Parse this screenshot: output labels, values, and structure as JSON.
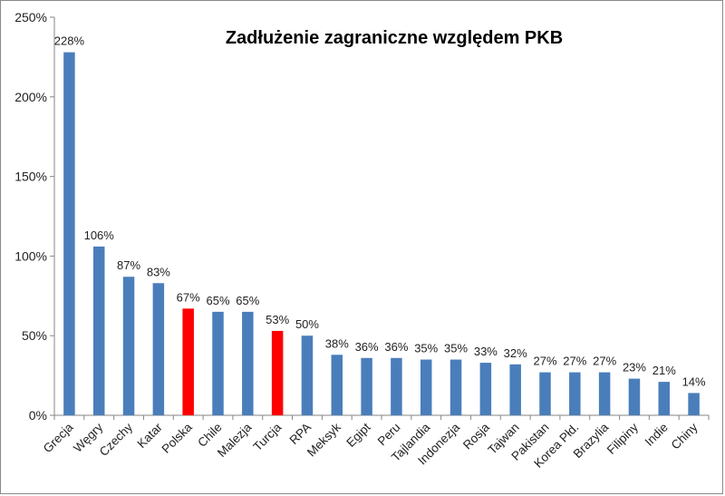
{
  "chart_data": {
    "type": "bar",
    "title": "Zadłużenie zagraniczne względem PKB",
    "ylim": [
      0,
      250
    ],
    "yticks": [
      "0%",
      "50%",
      "100%",
      "150%",
      "200%",
      "250%"
    ],
    "ytick_values": [
      0,
      50,
      100,
      150,
      200,
      250
    ],
    "grid": false,
    "legend": "none",
    "categories": [
      "Grecja",
      "Węgry",
      "Czechy",
      "Katar",
      "Polska",
      "Chile",
      "Malezja",
      "Turcja",
      "RPA",
      "Meksyk",
      "Egipt",
      "Peru",
      "Tajlandia",
      "Indonezja",
      "Rosja",
      "Tajwan",
      "Pakistan",
      "Korea Płd.",
      "Brazylia",
      "Filipiny",
      "Indie",
      "Chiny"
    ],
    "values": [
      228,
      106,
      87,
      83,
      67,
      65,
      65,
      53,
      50,
      38,
      36,
      36,
      35,
      35,
      33,
      32,
      27,
      27,
      27,
      23,
      21,
      14
    ],
    "data_labels": [
      "228%",
      "106%",
      "87%",
      "83%",
      "67%",
      "65%",
      "65%",
      "53%",
      "50%",
      "38%",
      "36%",
      "36%",
      "35%",
      "35%",
      "33%",
      "32%",
      "27%",
      "27%",
      "27%",
      "23%",
      "21%",
      "14%"
    ],
    "highlighted": [
      "Polska",
      "Turcja"
    ],
    "colors": {
      "default": "#4a7ebb",
      "highlight": "#ff0000",
      "axis": "#868686"
    }
  }
}
